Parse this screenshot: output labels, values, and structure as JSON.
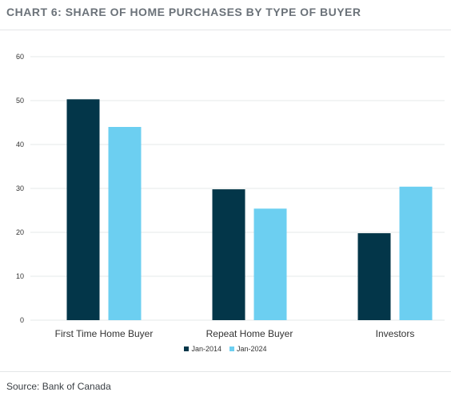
{
  "title": "CHART 6: SHARE OF HOME PURCHASES BY TYPE OF BUYER",
  "source": "Source: Bank of Canada",
  "colors": {
    "jan2014": "#033649",
    "jan2024": "#6ccff1",
    "grid": "#e6e8ea",
    "text": "#333333"
  },
  "chart_data": {
    "type": "bar",
    "categories": [
      "First Time Home Buyer",
      "Repeat Home Buyer",
      "Investors"
    ],
    "series": [
      {
        "name": "Jan-2014",
        "values": [
          50.3,
          29.8,
          19.8
        ]
      },
      {
        "name": "Jan-2024",
        "values": [
          44.0,
          25.4,
          30.4
        ]
      }
    ],
    "yticks": [
      0,
      10,
      20,
      30,
      40,
      50,
      60
    ],
    "ylim": [
      0,
      60
    ],
    "grid": true,
    "legend": "bottom-center"
  }
}
